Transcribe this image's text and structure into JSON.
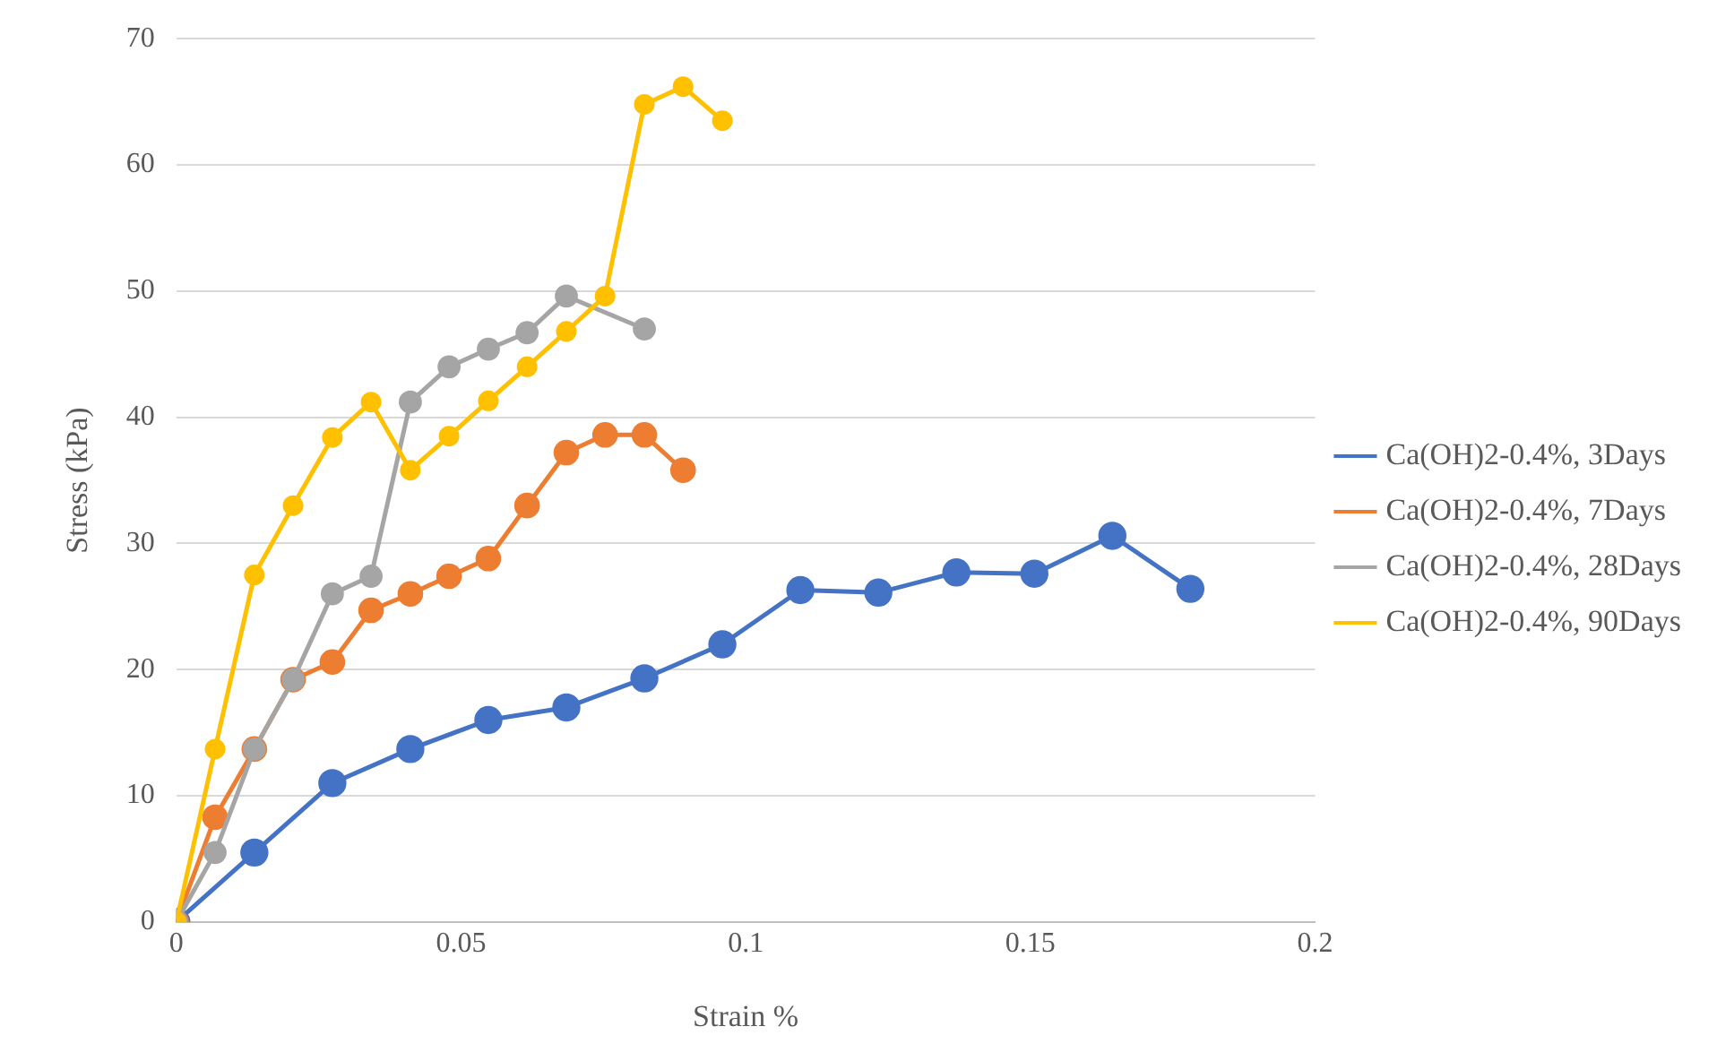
{
  "chart_data": {
    "type": "line",
    "xlabel": "Strain %",
    "ylabel": "Stress (kPa)",
    "xlim": [
      0,
      0.2
    ],
    "xticks": [
      0,
      0.05,
      0.1,
      0.15,
      0.2
    ],
    "ylim": [
      0,
      70
    ],
    "yticks": [
      0,
      10,
      20,
      30,
      40,
      50,
      60,
      70
    ],
    "grid": "y",
    "legend": "right",
    "marker": "circle",
    "line_style": "solid",
    "series": [
      {
        "name": "Ca(OH)2-0.4%, 3Days",
        "color": "#4472c4",
        "x": [
          0,
          0.0137,
          0.0274,
          0.0411,
          0.0548,
          0.0685,
          0.0822,
          0.0959,
          0.1096,
          0.1233,
          0.137,
          0.1507,
          0.1644,
          0.1781
        ],
        "values": [
          0,
          5.5,
          11,
          13.7,
          16,
          17,
          19.3,
          22,
          26.3,
          26.1,
          27.7,
          27.6,
          30.6,
          26.4
        ]
      },
      {
        "name": "Ca(OH)2-0.4%, 7Days",
        "color": "#ed7d31",
        "x": [
          0,
          0.0068,
          0.0137,
          0.0205,
          0.0274,
          0.0342,
          0.0411,
          0.0479,
          0.0548,
          0.0616,
          0.0685,
          0.0753,
          0.0822,
          0.089
        ],
        "values": [
          0,
          8.3,
          13.7,
          19.2,
          20.6,
          24.7,
          26,
          27.4,
          28.8,
          33,
          37.2,
          38.6,
          38.6,
          35.8
        ]
      },
      {
        "name": "Ca(OH)2-0.4%, 28Days",
        "color": "#a5a5a5",
        "x": [
          0,
          0.0068,
          0.0137,
          0.0205,
          0.0274,
          0.0342,
          0.0411,
          0.0479,
          0.0548,
          0.0616,
          0.0685,
          0.0822
        ],
        "values": [
          0,
          5.5,
          13.7,
          19.2,
          26,
          27.4,
          41.2,
          44,
          45.4,
          46.7,
          49.6,
          47
        ]
      },
      {
        "name": "Ca(OH)2-0.4%, 90Days",
        "color": "#ffc000",
        "x": [
          0,
          0.0068,
          0.0137,
          0.0205,
          0.0274,
          0.0342,
          0.0411,
          0.0479,
          0.0548,
          0.0616,
          0.0685,
          0.0753,
          0.0822,
          0.089,
          0.0959
        ],
        "values": [
          0,
          13.7,
          27.5,
          33,
          38.4,
          41.2,
          35.8,
          38.5,
          41.3,
          44,
          46.8,
          49.6,
          64.8,
          66.2,
          63.5
        ]
      }
    ]
  }
}
